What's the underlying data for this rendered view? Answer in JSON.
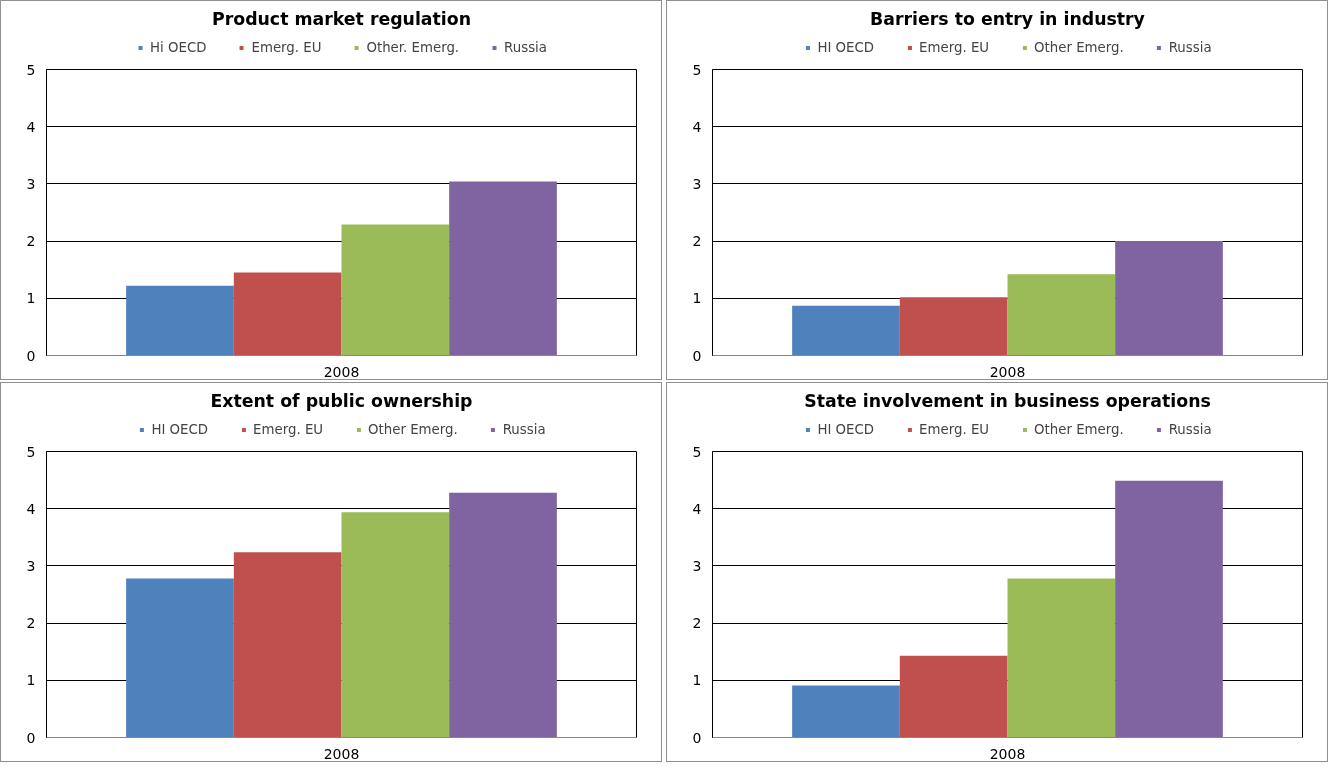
{
  "chart_data": [
    {
      "type": "bar",
      "title": "Product market regulation",
      "categories": [
        "2008"
      ],
      "ylim": [
        0,
        5
      ],
      "yticks": [
        0,
        1,
        2,
        3,
        4,
        5
      ],
      "grid": "y",
      "legend": "top",
      "series": [
        {
          "name": "Hi OECD",
          "color": "#4f81bd",
          "values": [
            1.22
          ]
        },
        {
          "name": "Emerg. EU",
          "color": "#c0504d",
          "values": [
            1.45
          ]
        },
        {
          "name": "Other. Emerg.",
          "color": "#9bbb59",
          "values": [
            2.29
          ]
        },
        {
          "name": "Russia",
          "color": "#8064a2",
          "values": [
            3.04
          ]
        }
      ]
    },
    {
      "type": "bar",
      "title": "Barriers to entry in industry",
      "categories": [
        "2008"
      ],
      "ylim": [
        0,
        5
      ],
      "yticks": [
        0,
        1,
        2,
        3,
        4,
        5
      ],
      "grid": "y",
      "legend": "top",
      "series": [
        {
          "name": "HI OECD",
          "color": "#4f81bd",
          "values": [
            0.87
          ]
        },
        {
          "name": "Emerg. EU",
          "color": "#c0504d",
          "values": [
            1.02
          ]
        },
        {
          "name": "Other Emerg.",
          "color": "#9bbb59",
          "values": [
            1.42
          ]
        },
        {
          "name": "Russia",
          "color": "#8064a2",
          "values": [
            2.0
          ]
        }
      ]
    },
    {
      "type": "bar",
      "title": "Extent of public ownership",
      "categories": [
        "2008"
      ],
      "ylim": [
        0,
        5
      ],
      "yticks": [
        0,
        1,
        2,
        3,
        4,
        5
      ],
      "grid": "y",
      "legend": "top",
      "series": [
        {
          "name": "HI OECD",
          "color": "#4f81bd",
          "values": [
            2.78
          ]
        },
        {
          "name": "Emerg. EU",
          "color": "#c0504d",
          "values": [
            3.24
          ]
        },
        {
          "name": "Other Emerg.",
          "color": "#9bbb59",
          "values": [
            3.94
          ]
        },
        {
          "name": "Russia",
          "color": "#8064a2",
          "values": [
            4.28
          ]
        }
      ]
    },
    {
      "type": "bar",
      "title": "State involvement in business operations",
      "categories": [
        "2008"
      ],
      "ylim": [
        0,
        5
      ],
      "yticks": [
        0,
        1,
        2,
        3,
        4,
        5
      ],
      "grid": "y",
      "legend": "top",
      "series": [
        {
          "name": "HI OECD",
          "color": "#4f81bd",
          "values": [
            0.91
          ]
        },
        {
          "name": "Emerg. EU",
          "color": "#c0504d",
          "values": [
            1.43
          ]
        },
        {
          "name": "Other Emerg.",
          "color": "#9bbb59",
          "values": [
            2.78
          ]
        },
        {
          "name": "Russia",
          "color": "#8064a2",
          "values": [
            4.49
          ]
        }
      ]
    }
  ]
}
